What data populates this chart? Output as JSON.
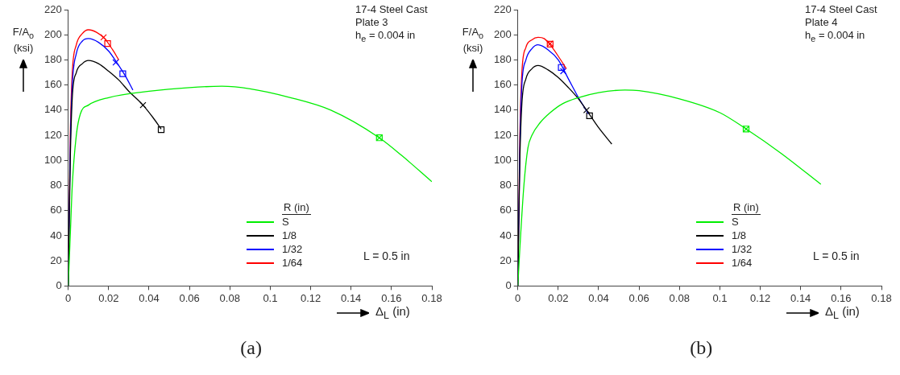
{
  "chart_data": [
    {
      "type": "line",
      "xlabel": "Δ$_{L}$ (in)",
      "ylabel": "F/A$_{o}$ (ksi)",
      "legend_title": "R (in)",
      "legend": "bottom right",
      "grid": false,
      "marker": "none",
      "line_style": "solid",
      "xlim": [
        0,
        0.18
      ],
      "xticks": [
        0,
        0.02,
        0.04,
        0.06,
        0.08,
        0.1,
        0.12,
        0.14,
        0.16,
        0.18
      ],
      "ylim": [
        0,
        220
      ],
      "yticks": [
        0,
        20,
        40,
        60,
        80,
        100,
        120,
        140,
        160,
        180,
        200,
        220
      ],
      "annotations": [
        "17-4 Steel Cast",
        "Plate 3",
        "h$_{e}$ = 0.004 in",
        "L = 0.5 in",
        "(a)"
      ],
      "series": [
        {
          "name": "S",
          "color": "#00ee00",
          "x": [
            0,
            0.001,
            0.002,
            0.004,
            0.006,
            0.01,
            0.02,
            0.04,
            0.06,
            0.076,
            0.09,
            0.11,
            0.13,
            0.154,
            0.165,
            0.18
          ],
          "values": [
            0,
            40,
            80,
            120,
            137,
            144,
            150,
            155,
            158,
            159,
            157,
            150,
            140,
            118,
            104,
            83
          ]
        },
        {
          "name": "1/8",
          "color": "#000000",
          "x": [
            0,
            0.001,
            0.002,
            0.004,
            0.007,
            0.01,
            0.015,
            0.02,
            0.025,
            0.03,
            0.037,
            0.042,
            0.046
          ],
          "values": [
            0,
            100,
            150,
            170,
            177,
            179.5,
            177,
            171,
            164,
            155,
            144,
            134,
            125
          ]
        },
        {
          "name": "1/32",
          "color": "#0000ff",
          "x": [
            0,
            0.001,
            0.002,
            0.004,
            0.007,
            0.01,
            0.015,
            0.02,
            0.024,
            0.028,
            0.032
          ],
          "values": [
            0,
            110,
            160,
            185,
            195,
            197,
            194,
            187,
            178,
            168,
            156
          ]
        },
        {
          "name": "1/64",
          "color": "#ff0000",
          "x": [
            0,
            0.001,
            0.002,
            0.004,
            0.007,
            0.01,
            0.014,
            0.018,
            0.022,
            0.025
          ],
          "values": [
            0,
            120,
            170,
            192,
            201,
            204,
            202,
            197,
            188,
            180
          ]
        },
        {
          "type": "scatter",
          "marker": "cross",
          "colors": [
            "#000000",
            "#0000ff",
            "#ff0000",
            "#00ee00"
          ],
          "x": [
            0.037,
            0.0235,
            0.0175,
            0.154
          ],
          "values": [
            144,
            178,
            198,
            118
          ]
        },
        {
          "type": "scatter",
          "marker": "square",
          "colors": [
            "#000000",
            "#0000ff",
            "#ff0000",
            "#00ee00"
          ],
          "x": [
            0.046,
            0.027,
            0.0195,
            0.154
          ],
          "values": [
            124.5,
            169,
            193,
            118
          ]
        }
      ]
    },
    {
      "type": "line",
      "xlabel": "Δ$_{L}$ (in)",
      "ylabel": "F/A$_{o}$ (ksi)",
      "legend_title": "R (in)",
      "legend": "bottom right",
      "grid": false,
      "marker": "none",
      "line_style": "solid",
      "xlim": [
        0,
        0.18
      ],
      "xticks": [
        0,
        0.02,
        0.04,
        0.06,
        0.08,
        0.1,
        0.12,
        0.14,
        0.16,
        0.18
      ],
      "ylim": [
        0,
        220
      ],
      "yticks": [
        0,
        20,
        40,
        60,
        80,
        100,
        120,
        140,
        160,
        180,
        200,
        220
      ],
      "annotations": [
        "17-4 Steel Cast",
        "Plate 4",
        "h$_{e}$ = 0.004 in",
        "L = 0.5 in",
        "(b)"
      ],
      "series": [
        {
          "name": "S",
          "color": "#00ee00",
          "x": [
            0,
            0.001,
            0.003,
            0.005,
            0.007,
            0.011,
            0.016,
            0.022,
            0.03,
            0.04,
            0.053,
            0.06,
            0.08,
            0.1,
            0.113,
            0.13,
            0.15
          ],
          "values": [
            0,
            30,
            80,
            110,
            120,
            130,
            138,
            145,
            150,
            154,
            156,
            155.5,
            149,
            138,
            125,
            106,
            81
          ]
        },
        {
          "name": "1/8",
          "color": "#000000",
          "x": [
            0,
            0.001,
            0.002,
            0.004,
            0.007,
            0.01,
            0.015,
            0.02,
            0.025,
            0.03,
            0.034,
            0.04,
            0.0465
          ],
          "values": [
            0,
            100,
            145,
            165,
            173,
            175.5,
            172,
            166,
            158,
            149,
            140,
            126,
            113
          ]
        },
        {
          "name": "1/32",
          "color": "#0000ff",
          "x": [
            0,
            0.001,
            0.002,
            0.004,
            0.007,
            0.01,
            0.015,
            0.02,
            0.025,
            0.03,
            0.035
          ],
          "values": [
            0,
            110,
            160,
            180,
            189,
            192,
            188,
            180,
            165,
            150,
            137
          ]
        },
        {
          "name": "1/64",
          "color": "#ff0000",
          "x": [
            0,
            0.001,
            0.002,
            0.004,
            0.007,
            0.01,
            0.013,
            0.016,
            0.02,
            0.024
          ],
          "values": [
            0,
            120,
            170,
            190,
            196,
            198,
            197,
            192,
            183,
            173
          ]
        },
        {
          "type": "scatter",
          "marker": "cross",
          "colors": [
            "#000000",
            "#0000ff",
            "#ff0000",
            "#00ee00"
          ],
          "x": [
            0.034,
            0.0225,
            0.016,
            0.113
          ],
          "values": [
            140,
            171,
            193,
            125
          ]
        },
        {
          "type": "scatter",
          "marker": "square",
          "colors": [
            "#000000",
            "#0000ff",
            "#ff0000",
            "#00ee00"
          ],
          "x": [
            0.0355,
            0.0215,
            0.016,
            0.113
          ],
          "values": [
            135.5,
            174,
            192.5,
            125
          ]
        }
      ]
    }
  ]
}
